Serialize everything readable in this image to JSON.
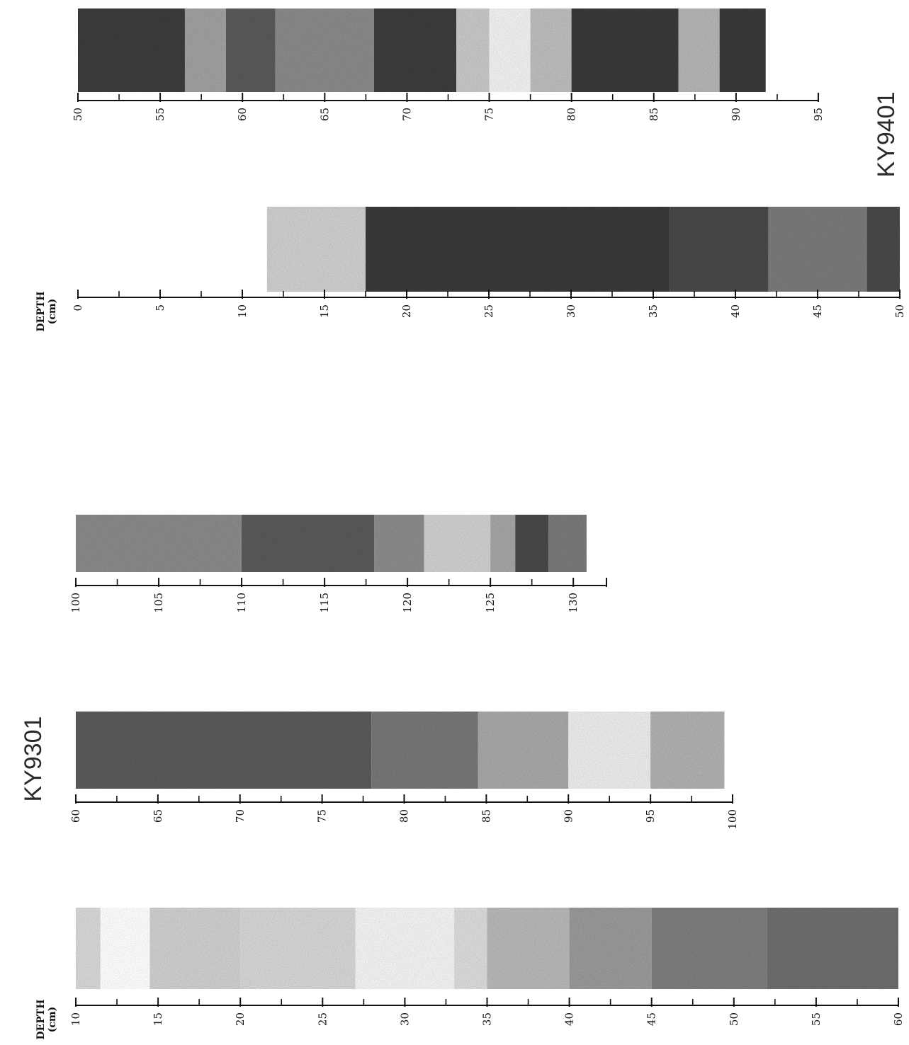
{
  "figure": {
    "cores": [
      {
        "name": "KY9401",
        "axis_title": "DEPTH",
        "axis_unit": "(cm)",
        "segments": [
          {
            "depth_range": [
              0,
              50
            ],
            "tick_labels": [
              "0",
              "5",
              "10",
              "15",
              "20",
              "25",
              "30",
              "35",
              "40",
              "45",
              "50"
            ],
            "shading": [
              {
                "from": 11.5,
                "to": 17.5,
                "tone": "#cfcfcf"
              },
              {
                "from": 17.5,
                "to": 36,
                "tone": "#3a3a3a"
              },
              {
                "from": 36,
                "to": 42,
                "tone": "#4a4a4a"
              },
              {
                "from": 42,
                "to": 48,
                "tone": "#7a7a7a"
              },
              {
                "from": 48,
                "to": 50,
                "tone": "#4a4a4a"
              }
            ]
          },
          {
            "depth_range": [
              50,
              95
            ],
            "tick_labels": [
              "50",
              "55",
              "60",
              "65",
              "70",
              "75",
              "80",
              "85",
              "90",
              "95"
            ],
            "shading": [
              {
                "from": 50,
                "to": 56.5,
                "tone": "#3c3c3c"
              },
              {
                "from": 56.5,
                "to": 59,
                "tone": "#a0a0a0"
              },
              {
                "from": 59,
                "to": 62,
                "tone": "#5a5a5a"
              },
              {
                "from": 62,
                "to": 68,
                "tone": "#8a8a8a"
              },
              {
                "from": 68,
                "to": 73,
                "tone": "#3c3c3c"
              },
              {
                "from": 73,
                "to": 75,
                "tone": "#c8c8c8"
              },
              {
                "from": 75,
                "to": 77.5,
                "tone": "#f2f2f2"
              },
              {
                "from": 77.5,
                "to": 80,
                "tone": "#bdbdbd"
              },
              {
                "from": 80,
                "to": 86.5,
                "tone": "#3a3a3a"
              },
              {
                "from": 86.5,
                "to": 89,
                "tone": "#b5b5b5"
              },
              {
                "from": 89,
                "to": 91.8,
                "tone": "#3a3a3a"
              }
            ]
          }
        ]
      },
      {
        "name": "KY9301",
        "axis_title": "DEPTH",
        "axis_unit": "(cm)",
        "segments": [
          {
            "depth_range": [
              10,
              60
            ],
            "tick_labels": [
              "10",
              "15",
              "20",
              "25",
              "30",
              "35",
              "40",
              "45",
              "50",
              "55",
              "60"
            ],
            "shading": [
              {
                "from": 10,
                "to": 11.5,
                "tone": "#d8d8d8"
              },
              {
                "from": 11.5,
                "to": 14.5,
                "tone": "#ffffff"
              },
              {
                "from": 14.5,
                "to": 20,
                "tone": "#cfcfcf"
              },
              {
                "from": 20,
                "to": 27,
                "tone": "#d6d6d6"
              },
              {
                "from": 27,
                "to": 33,
                "tone": "#f4f4f4"
              },
              {
                "from": 33,
                "to": 35,
                "tone": "#dcdcdc"
              },
              {
                "from": 35,
                "to": 40,
                "tone": "#b8b8b8"
              },
              {
                "from": 40,
                "to": 45,
                "tone": "#9a9a9a"
              },
              {
                "from": 45,
                "to": 52,
                "tone": "#7e7e7e"
              },
              {
                "from": 52,
                "to": 60,
                "tone": "#6e6e6e"
              }
            ]
          },
          {
            "depth_range": [
              60,
              100
            ],
            "tick_labels": [
              "60",
              "65",
              "70",
              "75",
              "80",
              "85",
              "90",
              "95",
              "100"
            ],
            "shading": [
              {
                "from": 60,
                "to": 78,
                "tone": "#5c5c5c"
              },
              {
                "from": 78,
                "to": 84.5,
                "tone": "#777777"
              },
              {
                "from": 84.5,
                "to": 90,
                "tone": "#a8a8a8"
              },
              {
                "from": 90,
                "to": 95,
                "tone": "#ececec"
              },
              {
                "from": 95,
                "to": 99.5,
                "tone": "#b0b0b0"
              }
            ]
          },
          {
            "depth_range": [
              100,
              132
            ],
            "tick_labels": [
              "100",
              "105",
              "110",
              "115",
              "120",
              "125",
              "130"
            ],
            "shading": [
              {
                "from": 100,
                "to": 110,
                "tone": "#8a8a8a"
              },
              {
                "from": 110,
                "to": 118,
                "tone": "#5a5a5a"
              },
              {
                "from": 118,
                "to": 121,
                "tone": "#8c8c8c"
              },
              {
                "from": 121,
                "to": 125,
                "tone": "#d0d0d0"
              },
              {
                "from": 125,
                "to": 126.5,
                "tone": "#a5a5a5"
              },
              {
                "from": 126.5,
                "to": 128.5,
                "tone": "#4a4a4a"
              },
              {
                "from": 128.5,
                "to": 130.8,
                "tone": "#7a7a7a"
              }
            ]
          }
        ]
      }
    ]
  }
}
